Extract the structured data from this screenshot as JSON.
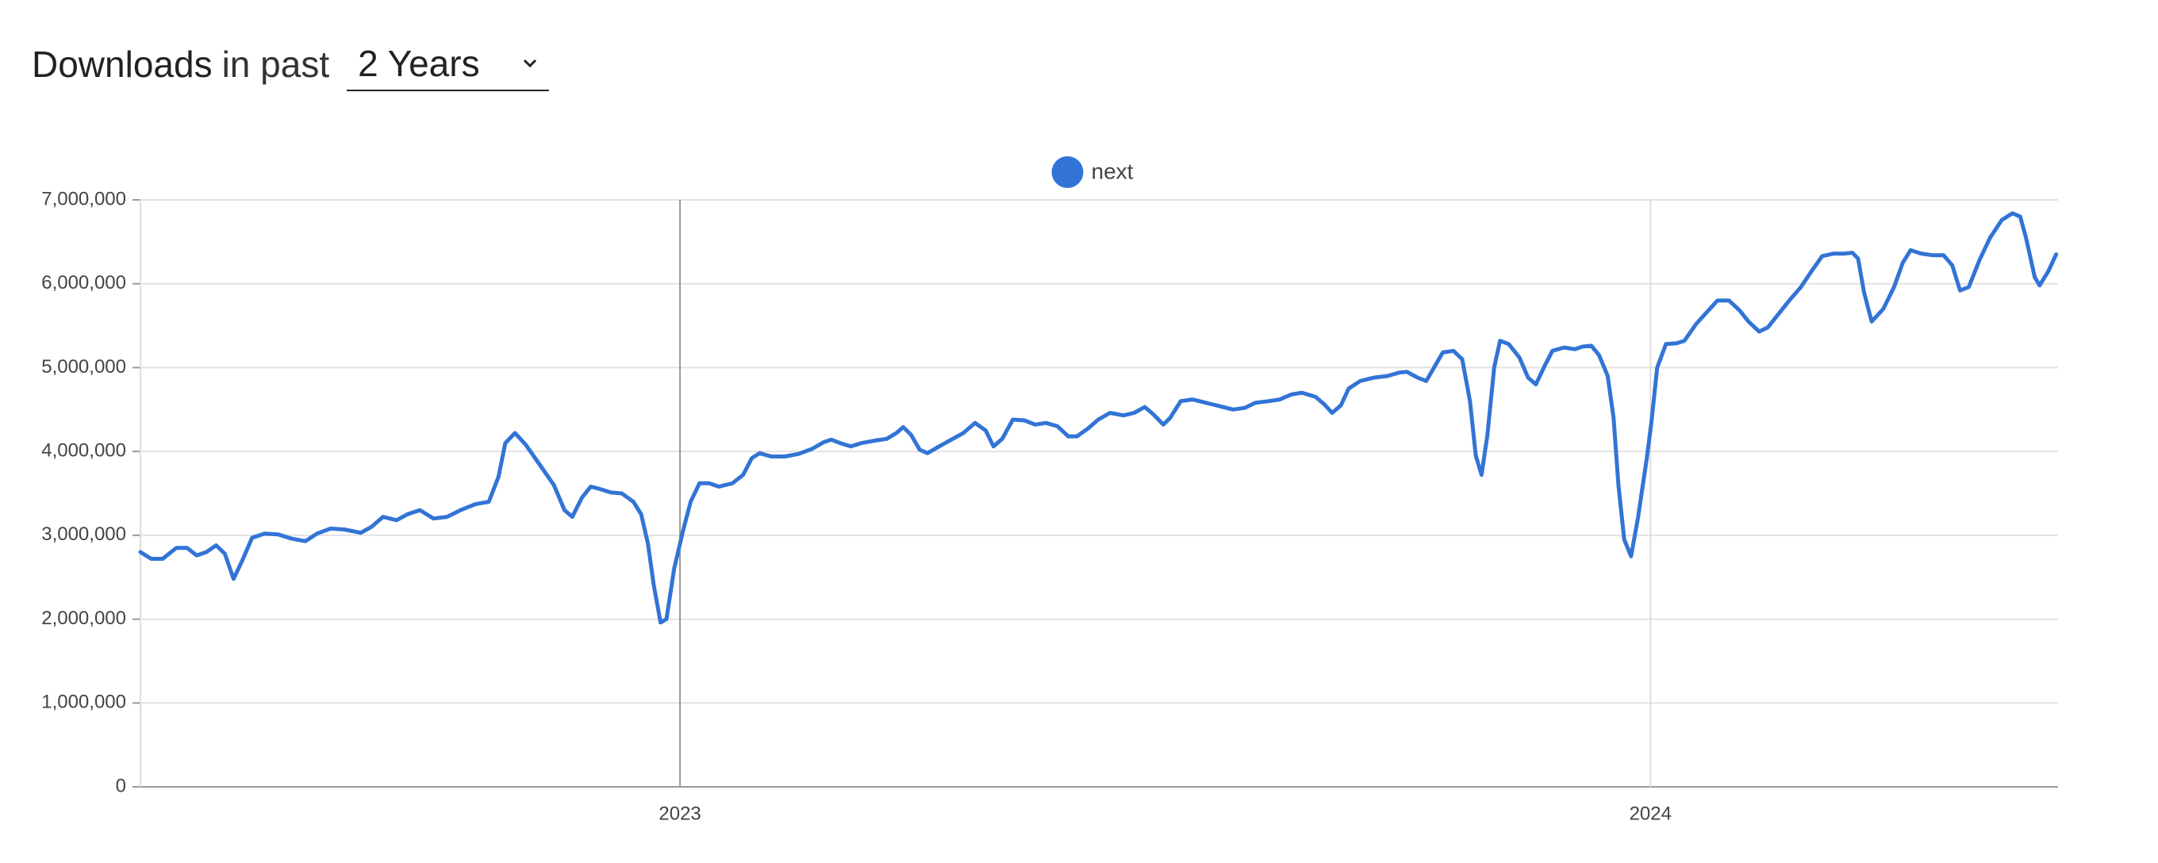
{
  "header": {
    "title": "Downloads",
    "suffix": "in past",
    "period": "2 Years"
  },
  "chart_data": {
    "type": "line",
    "x": [
      2022.444,
      2022.455,
      2022.467,
      2022.481,
      2022.492,
      2022.502,
      2022.512,
      2022.522,
      2022.531,
      2022.54,
      2022.549,
      2022.559,
      2022.572,
      2022.586,
      2022.6,
      2022.614,
      2022.626,
      2022.64,
      2022.654,
      2022.671,
      2022.682,
      2022.694,
      2022.708,
      2022.719,
      2022.732,
      2022.746,
      2022.76,
      2022.774,
      2022.789,
      2022.803,
      2022.813,
      2022.82,
      2022.83,
      2022.841,
      2022.855,
      2022.87,
      2022.881,
      2022.889,
      2022.899,
      2022.908,
      2022.918,
      2022.929,
      2022.94,
      2022.952,
      2022.96,
      2022.967,
      2022.973,
      2022.98,
      2022.986,
      2022.994,
      2023.003,
      2023.011,
      2023.02,
      2023.03,
      2023.04,
      2023.054,
      2023.065,
      2023.074,
      2023.082,
      2023.094,
      2023.108,
      2023.122,
      2023.136,
      2023.148,
      2023.156,
      2023.165,
      2023.176,
      2023.187,
      2023.201,
      2023.213,
      2023.223,
      2023.23,
      2023.238,
      2023.247,
      2023.255,
      2023.267,
      2023.281,
      2023.292,
      2023.304,
      2023.315,
      2023.323,
      2023.332,
      2023.343,
      2023.355,
      2023.366,
      2023.377,
      2023.389,
      2023.4,
      2023.409,
      2023.42,
      2023.431,
      2023.443,
      2023.457,
      2023.468,
      2023.479,
      2023.488,
      2023.498,
      2023.505,
      2023.516,
      2023.528,
      2023.542,
      2023.556,
      2023.57,
      2023.582,
      2023.593,
      2023.607,
      2023.618,
      2023.63,
      2023.641,
      2023.655,
      2023.664,
      2023.672,
      2023.681,
      2023.689,
      2023.701,
      2023.715,
      2023.729,
      2023.741,
      2023.749,
      2023.76,
      2023.769,
      2023.777,
      2023.786,
      2023.797,
      2023.806,
      2023.814,
      2023.82,
      2023.826,
      2023.832,
      2023.839,
      2023.845,
      2023.854,
      2023.865,
      2023.874,
      2023.882,
      2023.891,
      2023.899,
      2023.911,
      2023.922,
      2023.93,
      2023.939,
      2023.947,
      2023.956,
      2023.962,
      2023.967,
      2023.973,
      2023.98,
      2023.987,
      2023.996,
      2024.001,
      2024.007,
      2024.016,
      2024.027,
      2024.035,
      2024.047,
      2024.058,
      2024.069,
      2024.081,
      2024.092,
      2024.101,
      2024.112,
      2024.121,
      2024.132,
      2024.143,
      2024.155,
      2024.166,
      2024.177,
      2024.189,
      2024.2,
      2024.208,
      2024.214,
      2024.22,
      2024.228,
      2024.24,
      2024.251,
      2024.26,
      2024.268,
      2024.279,
      2024.291,
      2024.302,
      2024.311,
      2024.319,
      2024.328,
      2024.339,
      2024.35,
      2024.362,
      2024.373,
      2024.381,
      2024.387,
      2024.396,
      2024.401,
      2024.41,
      2024.418
    ],
    "series": [
      {
        "name": "next",
        "color": "#3274d6",
        "values": [
          2800000,
          2720000,
          2720000,
          2850000,
          2850000,
          2760000,
          2800000,
          2880000,
          2780000,
          2480000,
          2700000,
          2970000,
          3020000,
          3010000,
          2960000,
          2930000,
          3020000,
          3080000,
          3070000,
          3030000,
          3100000,
          3220000,
          3180000,
          3250000,
          3300000,
          3200000,
          3220000,
          3300000,
          3370000,
          3400000,
          3700000,
          4100000,
          4220000,
          4080000,
          3850000,
          3600000,
          3300000,
          3220000,
          3450000,
          3580000,
          3550000,
          3510000,
          3500000,
          3400000,
          3250000,
          2900000,
          2400000,
          1960000,
          2000000,
          2600000,
          3050000,
          3400000,
          3620000,
          3620000,
          3580000,
          3620000,
          3720000,
          3920000,
          3980000,
          3940000,
          3940000,
          3970000,
          4030000,
          4110000,
          4140000,
          4100000,
          4060000,
          4100000,
          4130000,
          4150000,
          4220000,
          4290000,
          4200000,
          4020000,
          3980000,
          4060000,
          4150000,
          4220000,
          4340000,
          4250000,
          4060000,
          4150000,
          4380000,
          4370000,
          4320000,
          4340000,
          4300000,
          4180000,
          4180000,
          4270000,
          4380000,
          4460000,
          4430000,
          4460000,
          4530000,
          4440000,
          4320000,
          4400000,
          4600000,
          4620000,
          4580000,
          4540000,
          4500000,
          4520000,
          4580000,
          4600000,
          4620000,
          4680000,
          4700000,
          4650000,
          4560000,
          4460000,
          4550000,
          4750000,
          4840000,
          4880000,
          4900000,
          4940000,
          4950000,
          4880000,
          4840000,
          5000000,
          5180000,
          5200000,
          5100000,
          4600000,
          3950000,
          3720000,
          4200000,
          5000000,
          5320000,
          5280000,
          5120000,
          4880000,
          4800000,
          5020000,
          5200000,
          5240000,
          5220000,
          5250000,
          5260000,
          5150000,
          4900000,
          4400000,
          3600000,
          2950000,
          2750000,
          3200000,
          3900000,
          4350000,
          5000000,
          5280000,
          5290000,
          5320000,
          5520000,
          5660000,
          5800000,
          5800000,
          5680000,
          5550000,
          5430000,
          5480000,
          5640000,
          5800000,
          5960000,
          6150000,
          6330000,
          6360000,
          6360000,
          6370000,
          6300000,
          5900000,
          5550000,
          5700000,
          5960000,
          6250000,
          6400000,
          6360000,
          6340000,
          6340000,
          6220000,
          5920000,
          5960000,
          6280000,
          6550000,
          6760000,
          6840000,
          6800000,
          6550000,
          6080000,
          5980000,
          6150000,
          6350000
        ]
      }
    ],
    "xlim": [
      2022.444,
      2024.42
    ],
    "xticks": [
      2023,
      2024
    ],
    "ylim": [
      0,
      7000000
    ],
    "yticks": [
      0,
      {
        "value": 1000000,
        "label": "1,000,000"
      },
      {
        "value": 2000000,
        "label": "2,000,000"
      },
      {
        "value": 3000000,
        "label": "3,000,000"
      },
      {
        "value": 4000000,
        "label": "4,000,000"
      },
      {
        "value": 5000000,
        "label": "5,000,000"
      },
      {
        "value": 6000000,
        "label": "6,000,000"
      },
      {
        "value": 7000000,
        "label": "7,000,000"
      }
    ],
    "grid": true,
    "legend": "top"
  }
}
